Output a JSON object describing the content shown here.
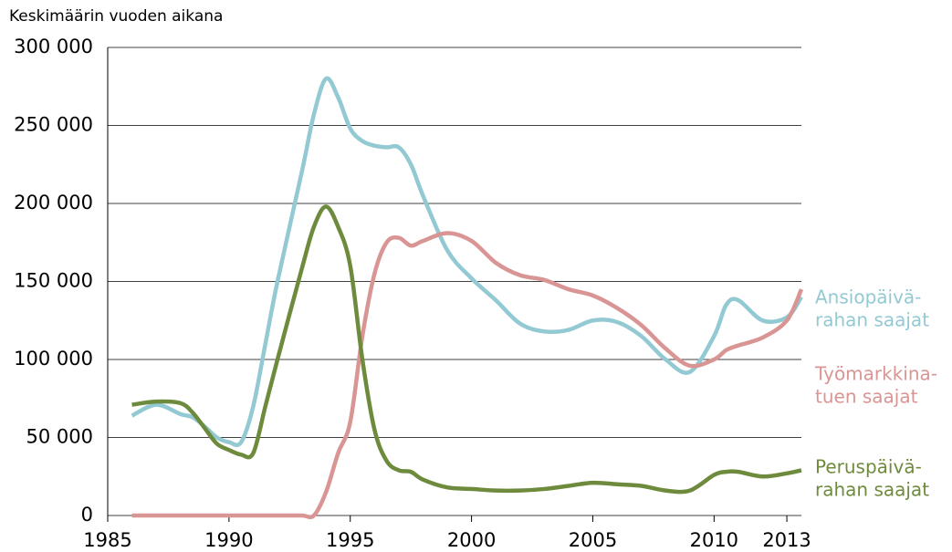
{
  "chart_data": {
    "type": "line",
    "y_axis_label": "Keskimäärin vuoden aikana",
    "x": [
      1986,
      1987,
      1988,
      1988.5,
      1989,
      1989.5,
      1990,
      1990.5,
      1991,
      1991.5,
      1992,
      1993,
      1993.5,
      1994,
      1994.5,
      1995,
      1995.5,
      1996,
      1996.5,
      1997,
      1997.5,
      1998,
      1999,
      2000,
      2001,
      2002,
      2003,
      2004,
      2005,
      2006,
      2007,
      2008,
      2009,
      2010,
      2010.5,
      2011,
      2012,
      2013,
      2013.6
    ],
    "series": [
      {
        "name": [
          "Ansiopäivä-",
          "rahan saajat"
        ],
        "color": "#92c9d3",
        "values": [
          64000,
          71000,
          65000,
          63000,
          57000,
          50000,
          47000,
          47000,
          70000,
          110000,
          150000,
          220000,
          257000,
          280000,
          268000,
          248000,
          240000,
          237000,
          236000,
          236000,
          225000,
          205000,
          170000,
          152000,
          138000,
          123000,
          118000,
          119000,
          125000,
          124000,
          115000,
          100000,
          92000,
          115000,
          135000,
          138000,
          125000,
          127000,
          140000
        ]
      },
      {
        "name": [
          "Työmarkkina-",
          "tuen saajat"
        ],
        "color": "#d99594",
        "values": [
          0,
          0,
          0,
          0,
          0,
          0,
          0,
          0,
          0,
          0,
          0,
          0,
          0,
          15000,
          40000,
          60000,
          115000,
          155000,
          175000,
          178000,
          173000,
          176000,
          181000,
          176000,
          162000,
          154000,
          151000,
          145000,
          141000,
          133000,
          122000,
          107000,
          96000,
          100000,
          106000,
          109000,
          114000,
          125000,
          145000
        ]
      },
      {
        "name": [
          "Peruspäivä-",
          "rahan saajat"
        ],
        "color": "#6e8b3d",
        "values": [
          71000,
          73000,
          72000,
          66000,
          56000,
          46000,
          42000,
          39000,
          40000,
          70000,
          100000,
          158000,
          185000,
          198000,
          185000,
          160000,
          100000,
          55000,
          35000,
          29000,
          28000,
          23000,
          18000,
          17000,
          16000,
          16000,
          17000,
          19000,
          21000,
          20000,
          19000,
          16000,
          16000,
          26000,
          28000,
          28000,
          25000,
          27000,
          29000
        ]
      }
    ],
    "xlim": [
      1985,
      2013.6
    ],
    "xticks": [
      1985,
      1990,
      1995,
      2000,
      2005,
      2010,
      2013
    ],
    "ylim": [
      0,
      300000
    ],
    "yticks": [
      0,
      {
        "value": 50000,
        "label": "50 000"
      },
      {
        "value": 100000,
        "label": "100 000"
      },
      {
        "value": 150000,
        "label": "150 000"
      },
      {
        "value": 200000,
        "label": "200 000"
      },
      {
        "value": 250000,
        "label": "250 000"
      },
      {
        "value": 300000,
        "label": "300 000"
      }
    ],
    "grid": true
  }
}
